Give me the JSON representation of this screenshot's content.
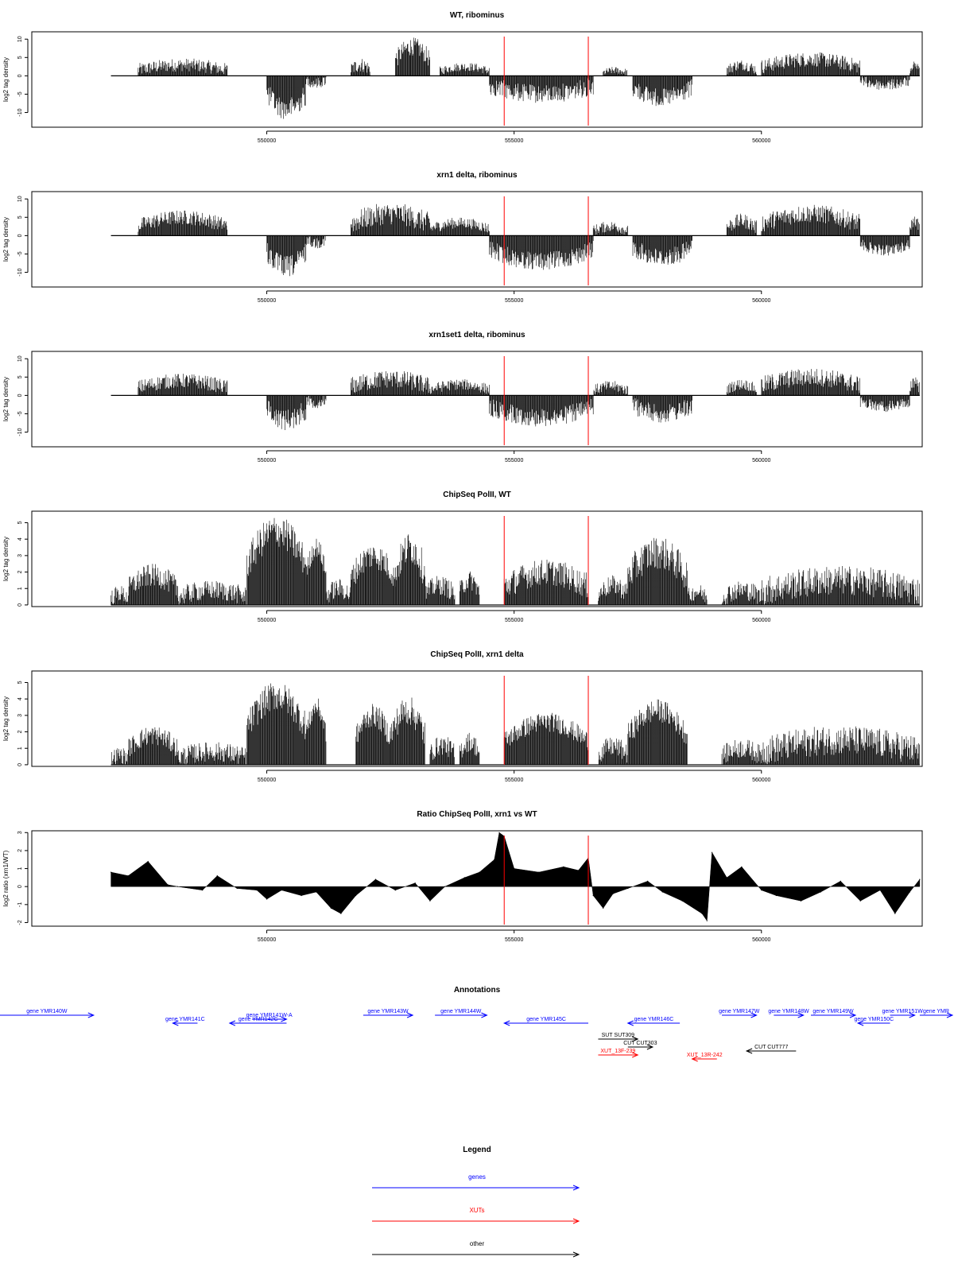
{
  "chart_data": [
    {
      "type": "bar",
      "title": "WT, ribominus",
      "ylabel": "log2 tag density",
      "xlim": [
        545250,
        563250
      ],
      "ylim": [
        -14,
        12
      ],
      "yticks": [
        -10,
        -5,
        0,
        5,
        10
      ],
      "xticks": [
        550000,
        555000,
        560000
      ],
      "tick_labels": [
        "-10",
        "-5",
        "0",
        "5",
        "10"
      ],
      "xtick_labels": [
        "550000",
        "555000",
        "560000"
      ],
      "markers": [
        554800,
        556500
      ],
      "marker_color": "#ff0000",
      "segments": [
        {
          "x0": 547400,
          "x1": 549200,
          "base": 3,
          "amp": 1.8,
          "sign": 1
        },
        {
          "x0": 550000,
          "x1": 550800,
          "base": 9,
          "amp": 3,
          "sign": -1
        },
        {
          "x0": 550800,
          "x1": 551200,
          "base": 2,
          "amp": 1.5,
          "sign": -1
        },
        {
          "x0": 551700,
          "x1": 552100,
          "base": 3,
          "amp": 2,
          "sign": 1
        },
        {
          "x0": 552600,
          "x1": 553300,
          "base": 8,
          "amp": 2.5,
          "sign": 1
        },
        {
          "x0": 553500,
          "x1": 554500,
          "base": 2.5,
          "amp": 1.2,
          "sign": 1
        },
        {
          "x0": 554500,
          "x1": 556600,
          "base": 5,
          "amp": 2.5,
          "sign": -1
        },
        {
          "x0": 556800,
          "x1": 557300,
          "base": 1.5,
          "amp": 1,
          "sign": 1
        },
        {
          "x0": 557400,
          "x1": 558600,
          "base": 6,
          "amp": 2.5,
          "sign": -1
        },
        {
          "x0": 559300,
          "x1": 559900,
          "base": 3,
          "amp": 1.5,
          "sign": 1
        },
        {
          "x0": 560000,
          "x1": 562000,
          "base": 4.5,
          "amp": 2,
          "sign": 1
        },
        {
          "x0": 562000,
          "x1": 563000,
          "base": 2.5,
          "amp": 1.5,
          "sign": -1
        },
        {
          "x0": 563000,
          "x1": 563200,
          "base": 3,
          "amp": 1,
          "sign": 1
        }
      ]
    },
    {
      "type": "bar",
      "title": "xrn1 delta, ribominus",
      "ylabel": "log2 tag density",
      "xlim": [
        545250,
        563250
      ],
      "ylim": [
        -14,
        12
      ],
      "yticks": [
        -10,
        -5,
        0,
        5,
        10
      ],
      "xticks": [
        550000,
        555000,
        560000
      ],
      "tick_labels": [
        "-10",
        "-5",
        "0",
        "5",
        "10"
      ],
      "xtick_labels": [
        "550000",
        "555000",
        "560000"
      ],
      "markers": [
        554800,
        556500
      ],
      "marker_color": "#ff0000",
      "segments": [
        {
          "x0": 547400,
          "x1": 549200,
          "base": 5,
          "amp": 2,
          "sign": 1
        },
        {
          "x0": 550000,
          "x1": 550800,
          "base": 8.5,
          "amp": 3,
          "sign": -1
        },
        {
          "x0": 550800,
          "x1": 551200,
          "base": 2,
          "amp": 1.5,
          "sign": -1
        },
        {
          "x0": 551700,
          "x1": 553300,
          "base": 6,
          "amp": 3,
          "sign": 1
        },
        {
          "x0": 553300,
          "x1": 554500,
          "base": 3.5,
          "amp": 1.5,
          "sign": 1
        },
        {
          "x0": 554500,
          "x1": 556600,
          "base": 7,
          "amp": 2.5,
          "sign": -1
        },
        {
          "x0": 556600,
          "x1": 557300,
          "base": 2.5,
          "amp": 1.5,
          "sign": 1
        },
        {
          "x0": 557400,
          "x1": 558600,
          "base": 6,
          "amp": 2.5,
          "sign": -1
        },
        {
          "x0": 559300,
          "x1": 559900,
          "base": 4,
          "amp": 2,
          "sign": 1
        },
        {
          "x0": 560000,
          "x1": 562000,
          "base": 6,
          "amp": 2.5,
          "sign": 1
        },
        {
          "x0": 562000,
          "x1": 563000,
          "base": 4,
          "amp": 1.5,
          "sign": -1
        },
        {
          "x0": 563000,
          "x1": 563200,
          "base": 4,
          "amp": 1.5,
          "sign": 1
        }
      ]
    },
    {
      "type": "bar",
      "title": "xrn1set1 delta, ribominus",
      "ylabel": "log2 tag density",
      "xlim": [
        545250,
        563250
      ],
      "ylim": [
        -14,
        12
      ],
      "yticks": [
        -10,
        -5,
        0,
        5,
        10
      ],
      "xticks": [
        550000,
        555000,
        560000
      ],
      "tick_labels": [
        "-10",
        "-5",
        "0",
        "5",
        "10"
      ],
      "xtick_labels": [
        "550000",
        "555000",
        "560000"
      ],
      "markers": [
        554800,
        556500
      ],
      "marker_color": "#ff0000",
      "segments": [
        {
          "x0": 547400,
          "x1": 549200,
          "base": 4,
          "amp": 2,
          "sign": 1
        },
        {
          "x0": 550000,
          "x1": 550800,
          "base": 6.5,
          "amp": 3,
          "sign": -1
        },
        {
          "x0": 550800,
          "x1": 551200,
          "base": 2,
          "amp": 1.5,
          "sign": -1
        },
        {
          "x0": 551700,
          "x1": 553300,
          "base": 4.5,
          "amp": 2.5,
          "sign": 1
        },
        {
          "x0": 553300,
          "x1": 554500,
          "base": 3,
          "amp": 1.5,
          "sign": 1
        },
        {
          "x0": 554500,
          "x1": 556600,
          "base": 6,
          "amp": 2.5,
          "sign": -1
        },
        {
          "x0": 556600,
          "x1": 557300,
          "base": 2.5,
          "amp": 1.5,
          "sign": 1
        },
        {
          "x0": 557400,
          "x1": 558600,
          "base": 5,
          "amp": 2.5,
          "sign": -1
        },
        {
          "x0": 559300,
          "x1": 559900,
          "base": 3,
          "amp": 1.5,
          "sign": 1
        },
        {
          "x0": 560000,
          "x1": 562000,
          "base": 5,
          "amp": 2.5,
          "sign": 1
        },
        {
          "x0": 562000,
          "x1": 563000,
          "base": 3,
          "amp": 1.5,
          "sign": -1
        },
        {
          "x0": 563000,
          "x1": 563200,
          "base": 4,
          "amp": 2,
          "sign": 1
        }
      ]
    },
    {
      "type": "bar",
      "title": "ChipSeq PolII, WT",
      "ylabel": "log2 tag density",
      "xlim": [
        545250,
        563250
      ],
      "ylim": [
        -0.1,
        5.7
      ],
      "yticks": [
        0,
        1,
        2,
        3,
        4,
        5
      ],
      "xticks": [
        550000,
        555000,
        560000
      ],
      "tick_labels": [
        "0",
        "1",
        "2",
        "3",
        "4",
        "5"
      ],
      "xtick_labels": [
        "550000",
        "555000",
        "560000"
      ],
      "markers": [
        554800,
        556500
      ],
      "marker_color": "#ff0000",
      "segments": [
        {
          "x0": 546850,
          "x1": 547200,
          "base": 0.7,
          "amp": 0.5,
          "sign": 1
        },
        {
          "x0": 547200,
          "x1": 548200,
          "base": 1.8,
          "amp": 0.7,
          "sign": 1
        },
        {
          "x0": 548200,
          "x1": 549600,
          "base": 0.9,
          "amp": 0.6,
          "sign": 1
        },
        {
          "x0": 549600,
          "x1": 550800,
          "base": 4.5,
          "amp": 1,
          "sign": 1
        },
        {
          "x0": 550800,
          "x1": 551200,
          "base": 3.5,
          "amp": 0.6,
          "sign": 1
        },
        {
          "x0": 551200,
          "x1": 551700,
          "base": 1,
          "amp": 0.6,
          "sign": 1
        },
        {
          "x0": 551700,
          "x1": 552600,
          "base": 3,
          "amp": 0.8,
          "sign": 1
        },
        {
          "x0": 552600,
          "x1": 553200,
          "base": 3.5,
          "amp": 1,
          "sign": 1
        },
        {
          "x0": 553200,
          "x1": 553800,
          "base": 1.2,
          "amp": 0.6,
          "sign": 1
        },
        {
          "x0": 553900,
          "x1": 554300,
          "base": 1.5,
          "amp": 0.6,
          "sign": 1
        },
        {
          "x0": 554800,
          "x1": 556500,
          "base": 2,
          "amp": 0.8,
          "sign": 1
        },
        {
          "x0": 556700,
          "x1": 557300,
          "base": 1.2,
          "amp": 0.6,
          "sign": 1
        },
        {
          "x0": 557300,
          "x1": 558500,
          "base": 3.2,
          "amp": 1,
          "sign": 1
        },
        {
          "x0": 558500,
          "x1": 558900,
          "base": 0.8,
          "amp": 0.5,
          "sign": 1
        },
        {
          "x0": 559200,
          "x1": 560000,
          "base": 0.9,
          "amp": 0.6,
          "sign": 1
        },
        {
          "x0": 560000,
          "x1": 563200,
          "base": 1.5,
          "amp": 0.9,
          "sign": 1
        }
      ]
    },
    {
      "type": "bar",
      "title": "ChipSeq PolII, xrn1 delta",
      "ylabel": "log2 tag density",
      "xlim": [
        545250,
        563250
      ],
      "ylim": [
        -0.1,
        5.7
      ],
      "yticks": [
        0,
        1,
        2,
        3,
        4,
        5
      ],
      "xticks": [
        550000,
        555000,
        560000
      ],
      "tick_labels": [
        "0",
        "1",
        "2",
        "3",
        "4",
        "5"
      ],
      "xtick_labels": [
        "550000",
        "555000",
        "560000"
      ],
      "markers": [
        554800,
        556500
      ],
      "marker_color": "#ff0000",
      "segments": [
        {
          "x0": 546850,
          "x1": 547200,
          "base": 0.6,
          "amp": 0.5,
          "sign": 1
        },
        {
          "x0": 547200,
          "x1": 548200,
          "base": 1.8,
          "amp": 0.6,
          "sign": 1
        },
        {
          "x0": 548200,
          "x1": 549600,
          "base": 0.8,
          "amp": 0.6,
          "sign": 1
        },
        {
          "x0": 549600,
          "x1": 550800,
          "base": 4.2,
          "amp": 0.9,
          "sign": 1
        },
        {
          "x0": 550800,
          "x1": 551200,
          "base": 3.5,
          "amp": 0.6,
          "sign": 1
        },
        {
          "x0": 551800,
          "x1": 552500,
          "base": 3,
          "amp": 0.7,
          "sign": 1
        },
        {
          "x0": 552500,
          "x1": 553200,
          "base": 3.3,
          "amp": 0.9,
          "sign": 1
        },
        {
          "x0": 553300,
          "x1": 553800,
          "base": 1.2,
          "amp": 0.6,
          "sign": 1
        },
        {
          "x0": 553900,
          "x1": 554300,
          "base": 1.4,
          "amp": 0.6,
          "sign": 1
        },
        {
          "x0": 554800,
          "x1": 556500,
          "base": 2.6,
          "amp": 0.6,
          "sign": 1
        },
        {
          "x0": 556700,
          "x1": 557300,
          "base": 1.1,
          "amp": 0.6,
          "sign": 1
        },
        {
          "x0": 557300,
          "x1": 558500,
          "base": 3.3,
          "amp": 0.7,
          "sign": 1
        },
        {
          "x0": 559200,
          "x1": 560000,
          "base": 1,
          "amp": 0.6,
          "sign": 1
        },
        {
          "x0": 560000,
          "x1": 563200,
          "base": 1.5,
          "amp": 0.9,
          "sign": 1
        }
      ]
    },
    {
      "type": "area",
      "title": "Ratio ChipSeq PolII, xrn1 vs WT",
      "ylabel": "log2 ratio (xrn1/WT)",
      "xlim": [
        545250,
        563250
      ],
      "ylim": [
        -2.2,
        3.1
      ],
      "yticks": [
        -2,
        -1,
        0,
        1,
        2,
        3
      ],
      "xticks": [
        550000,
        555000,
        560000
      ],
      "tick_labels": [
        "-2",
        "-1",
        "0",
        "1",
        "2",
        "3"
      ],
      "xtick_labels": [
        "550000",
        "555000",
        "560000"
      ],
      "markers": [
        554800,
        556500
      ],
      "marker_color": "#ff0000",
      "x": [
        546850,
        547200,
        547600,
        548000,
        548200,
        548700,
        549000,
        549400,
        549800,
        550000,
        550300,
        550700,
        551000,
        551300,
        551500,
        551800,
        552200,
        552600,
        553000,
        553300,
        553600,
        554000,
        554300,
        554600,
        554700,
        554800,
        555000,
        555500,
        556000,
        556300,
        556500,
        556600,
        556800,
        557000,
        557300,
        557700,
        558000,
        558400,
        558800,
        558900,
        559000,
        559300,
        559600,
        560000,
        560300,
        560800,
        561200,
        561600,
        562000,
        562400,
        562700,
        563000,
        563200
      ],
      "y": [
        0.8,
        0.6,
        1.4,
        0.1,
        0,
        -0.2,
        0.6,
        -0.1,
        -0.2,
        -0.7,
        -0.2,
        -0.5,
        -0.3,
        -1.2,
        -1.5,
        -0.5,
        0.4,
        -0.2,
        0.2,
        -0.8,
        0,
        0.5,
        0.8,
        1.5,
        3,
        2.8,
        1,
        0.8,
        1.1,
        0.9,
        1.6,
        -0.5,
        -1.2,
        -0.4,
        -0.1,
        0.3,
        -0.3,
        -0.8,
        -1.5,
        -1.9,
        1.9,
        0.5,
        1.1,
        -0.2,
        -0.5,
        -0.8,
        -0.3,
        0.3,
        -0.8,
        -0.2,
        -1.5,
        -0.3,
        0.4
      ]
    }
  ],
  "annotations": {
    "title": "Annotations",
    "items": [
      {
        "label": "gene YMR140W",
        "start": 544500,
        "end": 546500,
        "strand": "+",
        "row": 0,
        "color": "#0000ff"
      },
      {
        "label": "gene YMR141C",
        "start": 548100,
        "end": 548600,
        "strand": "-",
        "row": 1,
        "color": "#0000ff"
      },
      {
        "label": "gene YMR141W-A",
        "start": 549700,
        "end": 550400,
        "strand": "+",
        "row": 0.5,
        "color": "#0000ff"
      },
      {
        "label": "gene YMR142C",
        "start": 549250,
        "end": 550400,
        "strand": "-",
        "row": 1,
        "color": "#0000ff"
      },
      {
        "label": "gene YMR143W",
        "start": 551950,
        "end": 552950,
        "strand": "+",
        "row": 0,
        "color": "#0000ff"
      },
      {
        "label": "gene YMR144W",
        "start": 553400,
        "end": 554450,
        "strand": "+",
        "row": 0,
        "color": "#0000ff"
      },
      {
        "label": "gene YMR145C",
        "start": 554800,
        "end": 556500,
        "strand": "-",
        "row": 1,
        "color": "#0000ff"
      },
      {
        "label": "gene YMR146C",
        "start": 557300,
        "end": 558350,
        "strand": "-",
        "row": 1,
        "color": "#0000ff"
      },
      {
        "label": "gene YMR147W",
        "start": 559200,
        "end": 559900,
        "strand": "+",
        "row": 0,
        "color": "#0000ff"
      },
      {
        "label": "gene YMR148W",
        "start": 560250,
        "end": 560850,
        "strand": "+",
        "row": 0,
        "color": "#0000ff"
      },
      {
        "label": "gene YMR149W",
        "start": 561000,
        "end": 561900,
        "strand": "+",
        "row": 0,
        "color": "#0000ff"
      },
      {
        "label": "gene YMR150C",
        "start": 561950,
        "end": 562600,
        "strand": "-",
        "row": 1,
        "color": "#0000ff"
      },
      {
        "label": "gene YMR151W",
        "start": 562600,
        "end": 563100,
        "strand": "+",
        "row": 0,
        "color": "#0000ff"
      },
      {
        "label": "gene YMR",
        "start": 563200,
        "end": 564000,
        "strand": "+",
        "row": 0,
        "color": "#0000ff"
      },
      {
        "label": "SUT SUT309",
        "start": 556700,
        "end": 557500,
        "strand": "+",
        "row": 3,
        "color": "#000000"
      },
      {
        "label": "CUT CUT303",
        "start": 557300,
        "end": 557800,
        "strand": "+",
        "row": 4,
        "color": "#000000"
      },
      {
        "label": "CUT CUT777",
        "start": 559700,
        "end": 560700,
        "strand": "-",
        "row": 4.5,
        "color": "#000000"
      },
      {
        "label": "XUT_13F-239",
        "start": 556700,
        "end": 557500,
        "strand": "+",
        "row": 5,
        "color": "#ff0000"
      },
      {
        "label": "XUT_13R-242",
        "start": 558600,
        "end": 559100,
        "strand": "-",
        "row": 5.5,
        "color": "#ff0000"
      }
    ]
  },
  "legend": {
    "title": "Legend",
    "items": [
      {
        "label": "genes",
        "color": "#0000ff"
      },
      {
        "label": "XUTs",
        "color": "#ff0000"
      },
      {
        "label": "other",
        "color": "#000000"
      }
    ]
  }
}
